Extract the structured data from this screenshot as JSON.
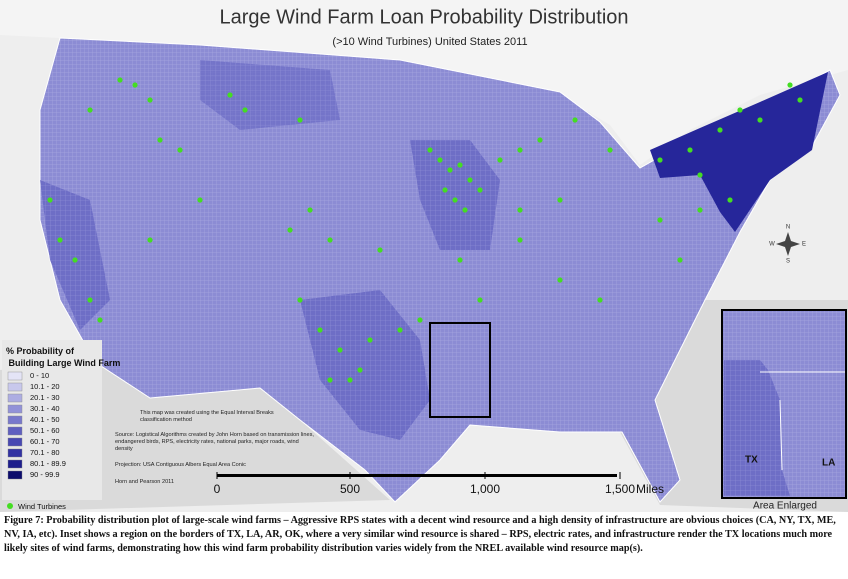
{
  "header": {
    "title": "Large Wind Farm Loan Probability Distribution",
    "subtitle": "(>10 Wind Turbines) United States 2011"
  },
  "legend": {
    "title": "% Probability of Building Large Wind Farm",
    "items": [
      {
        "label": "0 - 10",
        "color": "#e4e4f6"
      },
      {
        "label": "10.1 - 20",
        "color": "#c8c8ec"
      },
      {
        "label": "20.1 - 30",
        "color": "#adade2"
      },
      {
        "label": "30.1 - 40",
        "color": "#9292d8"
      },
      {
        "label": "40.1 - 50",
        "color": "#7878cc"
      },
      {
        "label": "50.1 - 60",
        "color": "#5f5fc0"
      },
      {
        "label": "60.1 - 70",
        "color": "#4848b2"
      },
      {
        "label": "70.1 - 80",
        "color": "#3232a2"
      },
      {
        "label": "80.1 - 89.9",
        "color": "#1e1e8c"
      },
      {
        "label": "90 - 99.9",
        "color": "#0c0c6c"
      }
    ],
    "turbines": "Wind Turbines"
  },
  "notes": [
    "This map was created using the Equal Interval Breaks classification method",
    "Source: Logistical Algorithms created by John Horn based on transmission lines, endangered birds, RPS, electricity rates, national parks, major roads, wind density",
    "Projection: USA Contiguous Albers Equal Area Conic",
    "Horn and Pearson 2011"
  ],
  "scale": {
    "ticks": [
      "0",
      "500",
      "1,000",
      "1,500"
    ],
    "unit": "Miles"
  },
  "compass": {
    "n": "N",
    "s": "S",
    "e": "E",
    "w": "W"
  },
  "inset": {
    "left": "TX",
    "right": "LA",
    "caption": "Area Enlarged"
  },
  "caption": "Figure 7: Probability distribution plot of large-scale wind farms – Aggressive RPS states with a decent wind resource and a high density of infrastructure are obvious choices (CA, NY, TX, ME, NV, IA, etc). Inset shows a region on the borders of TX, LA, AR, OK, where a very similar wind resource is shared – RPS, electric rates, and infrastructure render the TX locations much more likely sites of wind farms, demonstrating how this wind farm probability distribution varies widely from the NREL available wind resource map(s)."
}
